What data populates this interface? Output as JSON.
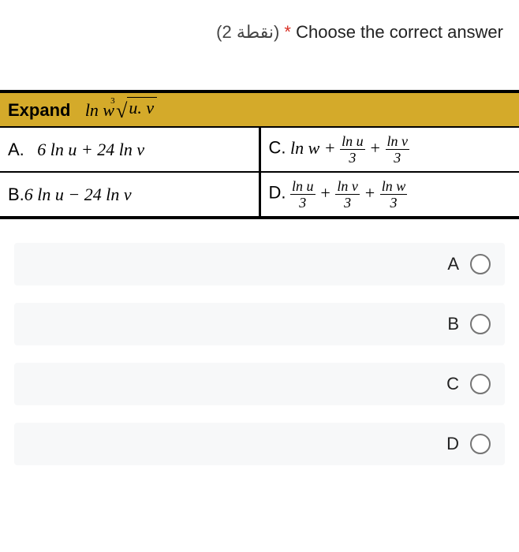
{
  "header": {
    "points_text": "(نقطة 2)",
    "asterisk": "*",
    "prompt": "Choose the correct answer"
  },
  "table": {
    "expand_label": "Expand",
    "expand_expr_prefix": "ln w",
    "root_index": "3",
    "radicand": "u. v",
    "cells": {
      "A_label": "A.",
      "A_expr": "6 ln u + 24 ln v",
      "B_label": "B.",
      "B_expr": "6 ln u − 24 ln v",
      "C_label": "C.",
      "C_prefix": "ln w +",
      "C_f1_num": "ln u",
      "C_f1_den": "3",
      "C_plus": "+",
      "C_f2_num": "ln v",
      "C_f2_den": "3",
      "D_label": "D.",
      "D_f1_num": "ln u",
      "D_f1_den": "3",
      "D_p1": "+",
      "D_f2_num": "ln v",
      "D_f2_den": "3",
      "D_p2": "+",
      "D_f3_num": "ln w",
      "D_f3_den": "3"
    }
  },
  "options": [
    {
      "label": "A"
    },
    {
      "label": "B"
    },
    {
      "label": "C"
    },
    {
      "label": "D"
    }
  ],
  "colors": {
    "header_bg": "#d4aa2a",
    "option_bg": "#f7f8f9",
    "radio_border": "#757575",
    "asterisk_color": "#d93025"
  }
}
